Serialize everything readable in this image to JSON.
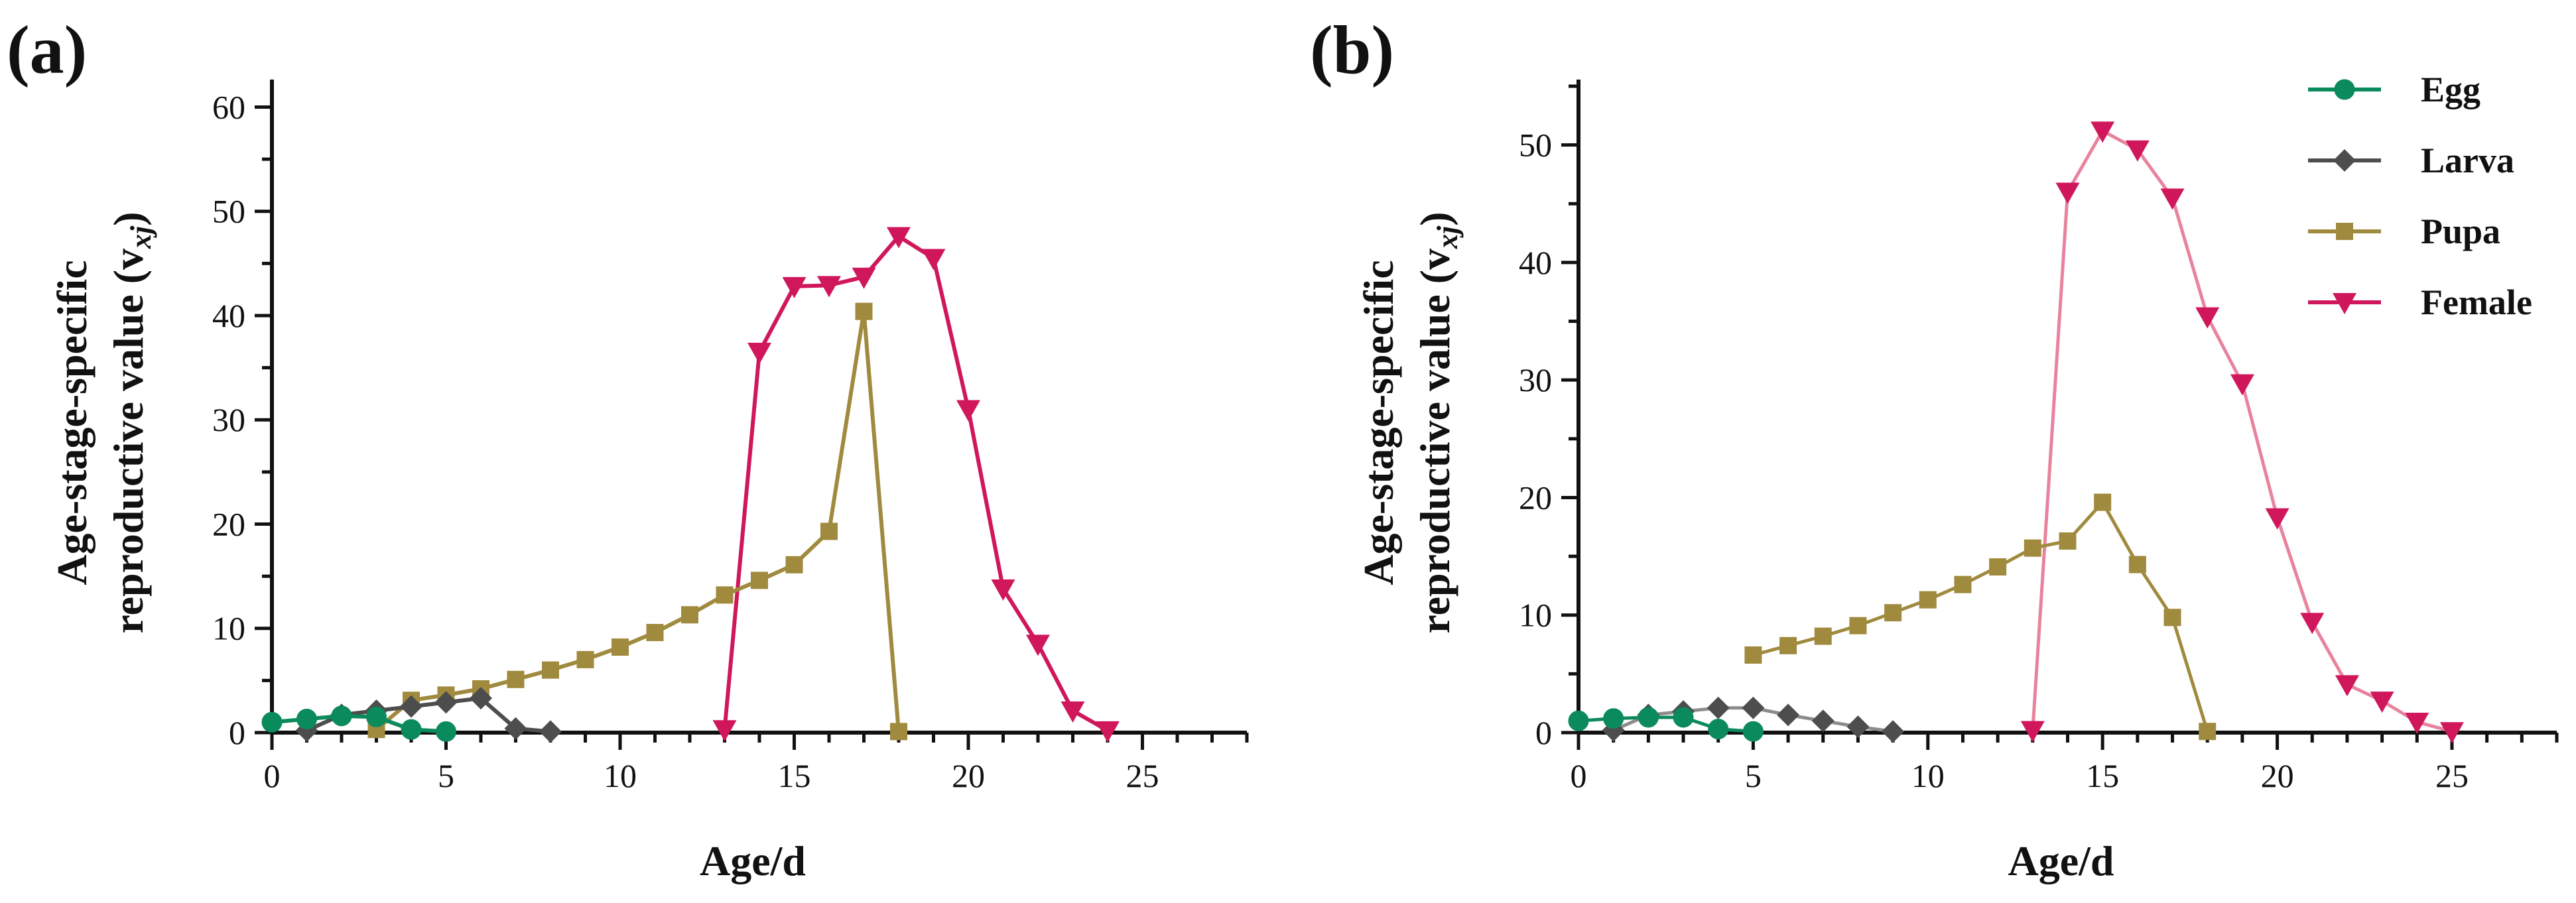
{
  "colors": {
    "Egg": "#0b8a5c",
    "Larva": "#4d4d4d",
    "Pupa": "#a08a3e",
    "Female": "#d0175c",
    "Female_light": "#e8839e",
    "Larva_light": "#8c8c8c"
  },
  "legend": {
    "items": [
      {
        "name": "Egg",
        "marker": "circle"
      },
      {
        "name": "Larva",
        "marker": "diamond"
      },
      {
        "name": "Pupa",
        "marker": "square"
      },
      {
        "name": "Female",
        "marker": "triangle-down"
      }
    ]
  },
  "chart_data": [
    {
      "panel": "(a)",
      "type": "line",
      "xlabel": "Age/d",
      "ylabel_line1": "Age-stage-specific",
      "ylabel_line2": "reproductive value (v",
      "ylabel_sub": "xj",
      "ylabel_end": ")",
      "xlim": [
        0,
        28
      ],
      "ylim": [
        0,
        62
      ],
      "xticks": [
        0,
        5,
        10,
        15,
        20,
        25
      ],
      "yticks": [
        0,
        10,
        20,
        30,
        40,
        50,
        60
      ],
      "series": [
        {
          "name": "Female",
          "x": [
            13,
            14,
            15,
            16,
            17,
            18,
            19,
            20,
            21,
            22,
            23,
            24
          ],
          "y": [
            0.3,
            36.5,
            42.8,
            42.9,
            43.7,
            47.6,
            45.5,
            31,
            13.8,
            8.5,
            2.1,
            0.2
          ]
        },
        {
          "name": "Pupa",
          "x": [
            3,
            4,
            5,
            6,
            7,
            8,
            9,
            10,
            11,
            12,
            13,
            14,
            15,
            16,
            17,
            18
          ],
          "y": [
            0.3,
            3.1,
            3.6,
            4.2,
            5.1,
            6,
            7,
            8.2,
            9.6,
            11.3,
            13.2,
            14.6,
            16.1,
            19.3,
            40.4,
            0.1
          ]
        },
        {
          "name": "Larva",
          "x": [
            1,
            2,
            3,
            4,
            5,
            6,
            7,
            8
          ],
          "y": [
            0.2,
            1.7,
            2.1,
            2.5,
            2.9,
            3.3,
            0.4,
            0.1
          ]
        },
        {
          "name": "Egg",
          "x": [
            0,
            1,
            2,
            3,
            4,
            5
          ],
          "y": [
            1,
            1.3,
            1.6,
            1.5,
            0.3,
            0.1
          ]
        }
      ]
    },
    {
      "panel": "(b)",
      "type": "line",
      "xlabel": "Age/d",
      "ylabel_line1": "Age-stage-specific",
      "ylabel_line2": "reproductive value (v",
      "ylabel_sub": "xj",
      "ylabel_end": ")",
      "xlim": [
        0,
        28
      ],
      "ylim": [
        0,
        55
      ],
      "xticks": [
        0,
        5,
        10,
        15,
        20,
        25
      ],
      "yticks": [
        0,
        10,
        20,
        30,
        40,
        50
      ],
      "series": [
        {
          "name": "Female",
          "x": [
            13,
            14,
            15,
            16,
            17,
            18,
            19,
            20,
            21,
            22,
            23,
            24,
            25
          ],
          "y": [
            0.2,
            46,
            51.2,
            49.6,
            45.5,
            35.4,
            29.7,
            18.3,
            9.4,
            4.1,
            2.7,
            0.9,
            0.1
          ]
        },
        {
          "name": "Pupa",
          "x": [
            5,
            6,
            7,
            8,
            9,
            10,
            11,
            12,
            13,
            14,
            15,
            16,
            17,
            18
          ],
          "y": [
            6.6,
            7.4,
            8.2,
            9.1,
            10.2,
            11.3,
            12.6,
            14.1,
            15.7,
            16.3,
            19.6,
            14.3,
            9.8,
            0.1
          ]
        },
        {
          "name": "Larva",
          "x": [
            1,
            2,
            3,
            4,
            5,
            6,
            7,
            8,
            9
          ],
          "y": [
            0.2,
            1.5,
            1.8,
            2.1,
            2.1,
            1.5,
            1,
            0.5,
            0.1
          ]
        },
        {
          "name": "Egg",
          "x": [
            0,
            1,
            2,
            3,
            4,
            5
          ],
          "y": [
            1,
            1.2,
            1.3,
            1.3,
            0.3,
            0.1
          ]
        }
      ]
    }
  ]
}
